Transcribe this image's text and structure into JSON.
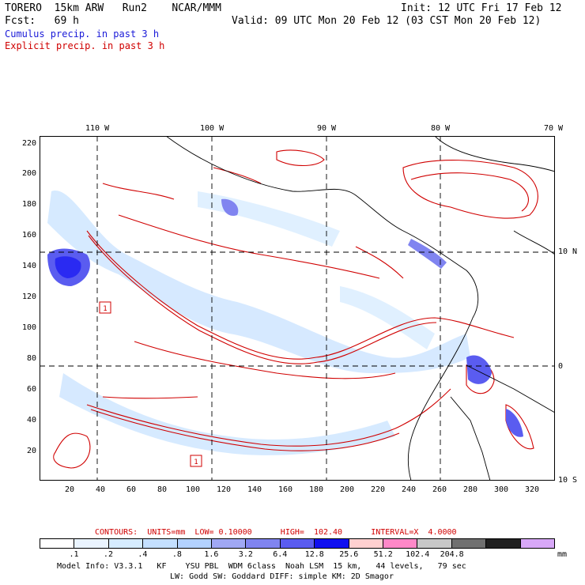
{
  "header": {
    "model": "TORERO  15km ARW   Run2    NCAR/MMM",
    "init": "Init: 12 UTC Fri 17 Feb 12",
    "fcst": "Fcst:   69 h",
    "valid": "Valid: 09 UTC Mon 20 Feb 12 (03 CST Mon 20 Feb 12)",
    "field1": "Cumulus precip. in past 3 h",
    "field2": "Explicit precip. in past 3 h",
    "field1_color": "#1a1ad8",
    "field2_color": "#d00000"
  },
  "map": {
    "lon_labels": [
      "110 W",
      "100 W",
      "90 W",
      "80 W",
      "70 W"
    ],
    "lat_labels": [
      "10 N",
      "0",
      "10 S"
    ],
    "y_ticks": [
      "220",
      "200",
      "180",
      "160",
      "140",
      "120",
      "100",
      "80",
      "60",
      "40",
      "20"
    ],
    "x_ticks": [
      "20",
      "40",
      "60",
      "80",
      "100",
      "120",
      "140",
      "160",
      "180",
      "200",
      "220",
      "240",
      "260",
      "280",
      "300",
      "320"
    ],
    "box_labels": [
      "1",
      "1"
    ],
    "field_colors": [
      "#b9dcff",
      "#7f86f2",
      "#2a2af2",
      "#d00000"
    ]
  },
  "contours_text": "CONTOURS:  UNITS=mm  LOW= 0.10000      HIGH=  102.40      INTERVAL=X  4.0000",
  "scale": {
    "colors": [
      "#ffffff",
      "#eaf4ff",
      "#d6ecff",
      "#c4e0ff",
      "#b3d2ff",
      "#a0a8f4",
      "#8084f0",
      "#5a5cf0",
      "#1010f0",
      "#ffd0d0",
      "#ff88c8",
      "#c8c8c8",
      "#707070",
      "#202020",
      "#d8a8f8"
    ],
    "labels": [
      ".1",
      ".2",
      ".4",
      ".8",
      "1.6",
      "3.2",
      "6.4",
      "12.8",
      "25.6",
      "51.2",
      "102.4",
      "204.8"
    ],
    "unit": "mm"
  },
  "info": {
    "line1": "Model Info: V3.3.1   KF    YSU PBL  WDM 6class  Noah LSM  15 km,   44 levels,   79 sec",
    "line2": "LW: Godd SW: Goddard DIFF: simple KM: 2D Smagor"
  }
}
